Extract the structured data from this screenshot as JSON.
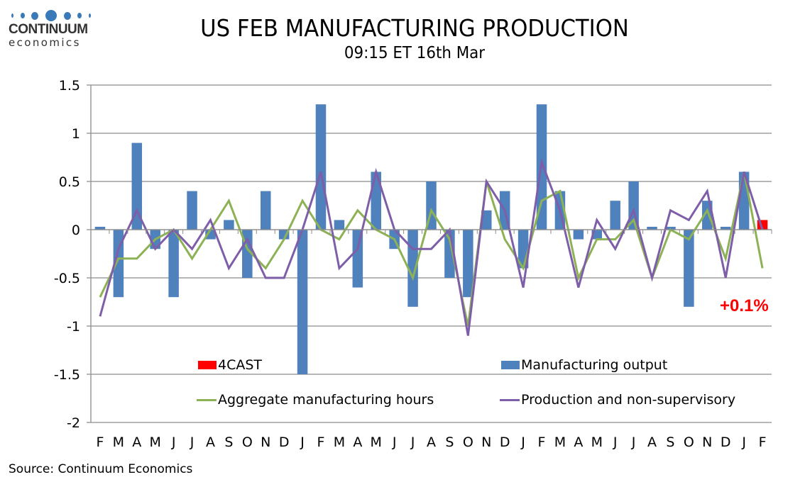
{
  "logo": {
    "name": "CONTINUUM",
    "sub": "economics",
    "color": "#3a7ab8"
  },
  "header": {
    "title": "US FEB MANUFACTURING PRODUCTION",
    "subtitle": "09:15 ET 16th Mar"
  },
  "footer": {
    "source": "Source: Continuum Economics"
  },
  "callout": {
    "text": "+0.1%",
    "color": "#ff0000"
  },
  "chart_data": {
    "type": "bar",
    "title": "US FEB MANUFACTURING PRODUCTION",
    "subtitle": "09:15 ET 16th Mar",
    "xlabel": "",
    "ylabel": "",
    "ylim": [
      -2,
      1.5
    ],
    "yticks": [
      1.5,
      1,
      0.5,
      0,
      -0.5,
      -1,
      -1.5,
      -2
    ],
    "ytick_labels": [
      "1.5",
      "1",
      "0.5",
      "0",
      "-0.5",
      "-1",
      "-1.5",
      "-2"
    ],
    "grid": true,
    "legend_placement": "bottom-inside",
    "categories": [
      "F",
      "M",
      "A",
      "M",
      "J",
      "J",
      "A",
      "S",
      "O",
      "N",
      "D",
      "J",
      "F",
      "M",
      "A",
      "M",
      "J",
      "J",
      "A",
      "S",
      "O",
      "N",
      "D",
      "J",
      "F",
      "M",
      "A",
      "M",
      "J",
      "J",
      "A",
      "S",
      "O",
      "N",
      "D",
      "J",
      "F"
    ],
    "series": [
      {
        "name": "Manufacturing output",
        "kind": "bar",
        "color": "#4f81bd",
        "values": [
          0.03,
          -0.7,
          0.9,
          -0.2,
          -0.7,
          0.4,
          -0.1,
          0.1,
          -0.5,
          0.4,
          -0.1,
          -1.5,
          1.3,
          0.1,
          -0.6,
          0.6,
          -0.2,
          -0.8,
          0.5,
          -0.5,
          -0.7,
          0.2,
          0.4,
          -0.4,
          1.3,
          0.4,
          -0.1,
          -0.1,
          0.3,
          0.5,
          0.03,
          0.03,
          -0.8,
          0.3,
          0.03,
          0.6,
          null
        ]
      },
      {
        "name": "4CAST",
        "kind": "bar",
        "color": "#ff0000",
        "values": [
          null,
          null,
          null,
          null,
          null,
          null,
          null,
          null,
          null,
          null,
          null,
          null,
          null,
          null,
          null,
          null,
          null,
          null,
          null,
          null,
          null,
          null,
          null,
          null,
          null,
          null,
          null,
          null,
          null,
          null,
          null,
          null,
          null,
          null,
          null,
          null,
          0.1
        ]
      },
      {
        "name": "Aggregate manufacturing hours",
        "kind": "line",
        "color": "#8db255",
        "values": [
          -0.7,
          -0.3,
          -0.3,
          -0.1,
          0,
          -0.3,
          0,
          0.3,
          -0.2,
          -0.4,
          -0.1,
          0.3,
          0,
          -0.1,
          0.2,
          0,
          -0.1,
          -0.5,
          0.2,
          -0.1,
          -1.0,
          0.5,
          -0.1,
          -0.4,
          0.3,
          0.4,
          -0.5,
          -0.1,
          -0.1,
          0.1,
          -0.5,
          0,
          -0.1,
          0.2,
          -0.3,
          0.6,
          -0.4
        ]
      },
      {
        "name": "Production and non-supervisory",
        "kind": "line",
        "color": "#7e5ea8",
        "values": [
          -0.9,
          -0.2,
          0.2,
          -0.2,
          0,
          -0.2,
          0.1,
          -0.4,
          -0.1,
          -0.5,
          -0.5,
          0,
          0.6,
          -0.4,
          -0.2,
          0.6,
          0,
          -0.2,
          -0.2,
          0,
          -1.1,
          0.5,
          0.2,
          -0.6,
          0.7,
          0.2,
          -0.6,
          0.1,
          -0.2,
          0.2,
          -0.5,
          0.2,
          0.1,
          0.4,
          -0.5,
          0.6,
          0
        ]
      }
    ],
    "legend": [
      {
        "label": "4CAST",
        "series": 1
      },
      {
        "label": "Manufacturing output",
        "series": 0
      },
      {
        "label": "Aggregate manufacturing hours",
        "series": 2
      },
      {
        "label": "Production and non-supervisory",
        "series": 3
      }
    ]
  }
}
